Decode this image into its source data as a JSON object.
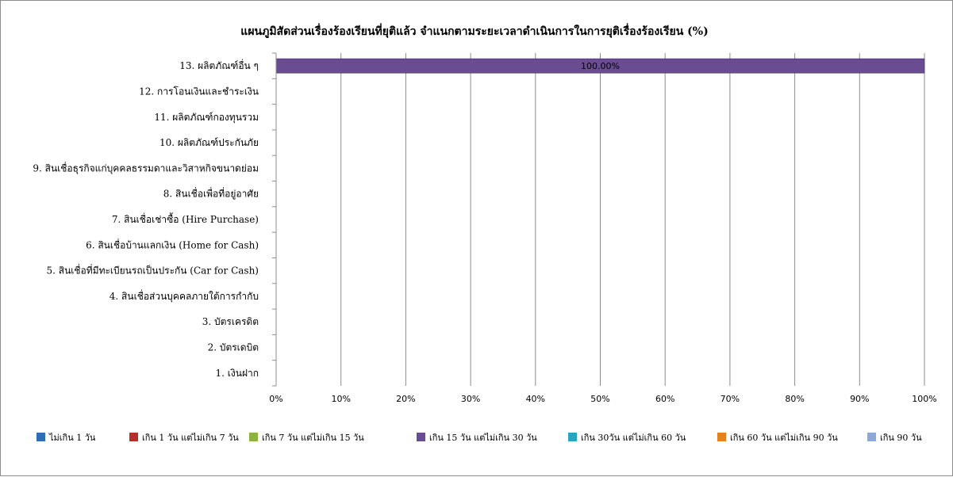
{
  "chart_data": {
    "type": "bar",
    "orientation": "horizontal",
    "stacked": true,
    "title": "แผนภูมิสัดส่วนเรื่องร้องเรียนที่ยุติแล้ว จำแนกตามระยะเวลาดำเนินการในการยุติเรื่องร้องเรียน (%)",
    "categories": [
      "13. ผลิตภัณฑ์อื่น ๆ",
      "12. การโอนเงินและชำระเงิน",
      "11. ผลิตภัณฑ์กองทุนรวม",
      "10. ผลิตภัณฑ์ประกันภัย",
      "9. สินเชื่อธุรกิจแก่บุคคลธรรมดาและวิสาหกิจขนาดย่อม",
      "8. สินเชื่อเพื่อที่อยู่อาศัย",
      "7. สินเชื่อเช่าซื้อ (Hire Purchase)",
      "6. สินเชื่อบ้านแลกเงิน (Home for Cash)",
      "5. สินเชื่อที่มีทะเบียนรถเป็นประกัน  (Car for Cash)",
      "4. สินเชื่อส่วนบุคคลภายใต้การกำกับ",
      "3. บัตรเครดิต",
      "2. บัตรเดบิต",
      "1. เงินฝาก"
    ],
    "series": [
      {
        "name": "ไม่เกิน 1 วัน",
        "color": "#2e6db4",
        "values": [
          0,
          0,
          0,
          0,
          0,
          0,
          0,
          0,
          0,
          0,
          0,
          0,
          0
        ]
      },
      {
        "name": "เกิน 1 วัน แต่ไม่เกิน 7 วัน",
        "color": "#b5302b",
        "values": [
          0,
          0,
          0,
          0,
          0,
          0,
          0,
          0,
          0,
          0,
          0,
          0,
          0
        ]
      },
      {
        "name": "เกิน 7 วัน แต่ไม่เกิน 15 วัน",
        "color": "#8db33f",
        "values": [
          0,
          0,
          0,
          0,
          0,
          0,
          0,
          0,
          0,
          0,
          0,
          0,
          0
        ]
      },
      {
        "name": "เกิน 15 วัน แต่ไม่เกิน 30 วัน",
        "color": "#6a4c93",
        "values": [
          100,
          0,
          0,
          0,
          0,
          0,
          0,
          0,
          0,
          0,
          0,
          0,
          0
        ]
      },
      {
        "name": "เกิน 30วัน แต่ไม่เกิน 60 วัน",
        "color": "#2aa5c0",
        "values": [
          0,
          0,
          0,
          0,
          0,
          0,
          0,
          0,
          0,
          0,
          0,
          0,
          0
        ]
      },
      {
        "name": "เกิน 60 วัน แต่ไม่เกิน 90 วัน",
        "color": "#e6821e",
        "values": [
          0,
          0,
          0,
          0,
          0,
          0,
          0,
          0,
          0,
          0,
          0,
          0,
          0
        ]
      },
      {
        "name": "เกิน 90 วัน",
        "color": "#8ea9d8",
        "values": [
          0,
          0,
          0,
          0,
          0,
          0,
          0,
          0,
          0,
          0,
          0,
          0,
          0
        ]
      }
    ],
    "data_labels": [
      {
        "category_index": 0,
        "series_index": 3,
        "text": "100.00%"
      }
    ],
    "x_ticks": [
      "0%",
      "10%",
      "20%",
      "30%",
      "40%",
      "50%",
      "60%",
      "70%",
      "80%",
      "90%",
      "100%"
    ],
    "xlim": [
      0,
      100
    ],
    "grid": "vertical",
    "legend": "bottom"
  }
}
